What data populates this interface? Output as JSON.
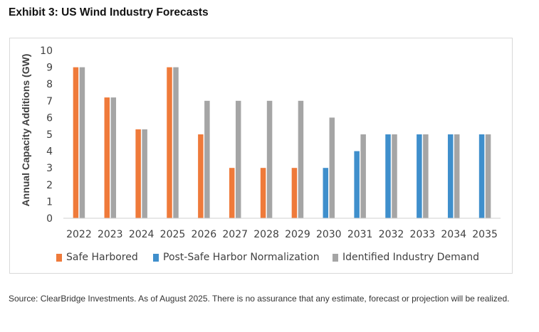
{
  "title": "Exhibit 3: US Wind Industry Forecasts",
  "source": "Source: ClearBridge Investments. As of August 2025. There is no assurance that any estimate, forecast or projection will be realized.",
  "chart_data": {
    "type": "bar",
    "ylabel": "Annual Capacity Additions (GW)",
    "ylim": [
      0,
      10
    ],
    "yticks": [
      "0",
      "1",
      "2",
      "3",
      "4",
      "5",
      "6",
      "7",
      "8",
      "9",
      "10"
    ],
    "grid": false,
    "legend_position": "bottom",
    "categories": [
      "2022",
      "2023",
      "2024",
      "2025",
      "2026",
      "2027",
      "2028",
      "2029",
      "2030",
      "2031",
      "2032",
      "2033",
      "2034",
      "2035"
    ],
    "series": [
      {
        "name": "Safe Harbored",
        "color": "#ef7a3a",
        "values": [
          9,
          7.2,
          5.3,
          9,
          5,
          3,
          3,
          3,
          null,
          null,
          null,
          null,
          null,
          null
        ]
      },
      {
        "name": "Post-Safe Harbor Normalization",
        "color": "#3f8fcc",
        "values": [
          null,
          null,
          null,
          null,
          null,
          null,
          null,
          null,
          3,
          4,
          5,
          5,
          5,
          5
        ]
      },
      {
        "name": "Identified Industry Demand",
        "color": "#a5a5a5",
        "values": [
          9,
          7.2,
          5.3,
          9,
          7,
          7,
          7,
          7,
          6,
          5,
          5,
          5,
          5,
          5
        ]
      }
    ]
  }
}
